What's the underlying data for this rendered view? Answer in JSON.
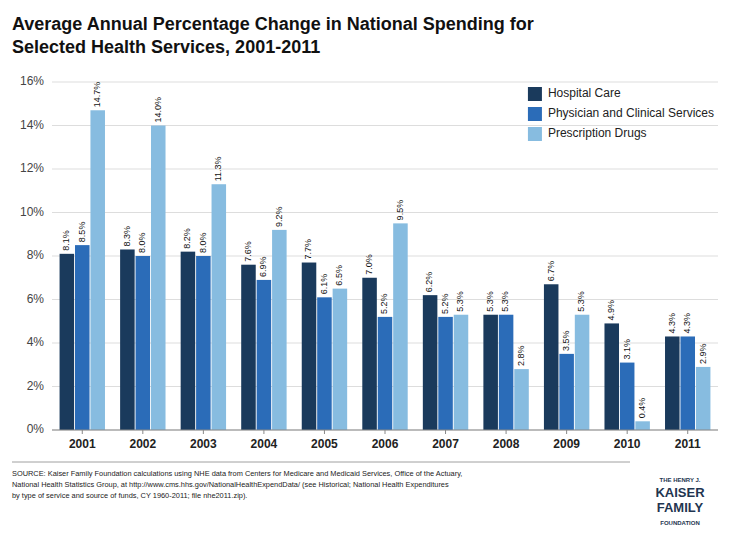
{
  "chart_data": {
    "type": "bar",
    "title": "Average Annual Percentage Change in National Spending for\nSelected Health Services, 2001-2011",
    "categories": [
      "2001",
      "2002",
      "2003",
      "2004",
      "2005",
      "2006",
      "2007",
      "2008",
      "2009",
      "2010",
      "2011"
    ],
    "series": [
      {
        "name": "Hospital Care",
        "color": "#1a3a5c",
        "values": [
          8.1,
          8.3,
          8.2,
          7.6,
          7.7,
          7.0,
          6.2,
          5.3,
          6.7,
          4.9,
          4.3
        ],
        "value_labels": [
          "8.1%",
          "8.3%",
          "8.2%",
          "7.6%",
          "7.7%",
          "7.0%",
          "6.2%",
          "5.3%",
          "6.7%",
          "4.9%",
          "4.3%"
        ]
      },
      {
        "name": "Physician and Clinical Services",
        "color": "#2b6cb8",
        "values": [
          8.5,
          8.0,
          8.0,
          6.9,
          6.1,
          5.2,
          5.2,
          5.3,
          3.5,
          3.1,
          4.3
        ],
        "value_labels": [
          "8.5%",
          "8.0%",
          "8.0%",
          "6.9%",
          "6.1%",
          "5.2%",
          "5.2%",
          "5.3%",
          "3.5%",
          "3.1%",
          "4.3%"
        ]
      },
      {
        "name": "Prescription Drugs",
        "color": "#87bce0",
        "values": [
          14.7,
          14.0,
          11.3,
          9.2,
          6.5,
          9.5,
          5.3,
          2.8,
          5.3,
          0.4,
          2.9
        ],
        "value_labels": [
          "14.7%",
          "14.0%",
          "11.3%",
          "9.2%",
          "6.5%",
          "9.5%",
          "5.3%",
          "2.8%",
          "5.3%",
          "0.4%",
          "2.9%"
        ]
      }
    ],
    "ylim": [
      0,
      16
    ],
    "yticks": [
      {
        "value": 0,
        "label": "0%"
      },
      {
        "value": 2,
        "label": "2%"
      },
      {
        "value": 4,
        "label": "4%"
      },
      {
        "value": 6,
        "label": "6%"
      },
      {
        "value": 8,
        "label": "8%"
      },
      {
        "value": 10,
        "label": "10%"
      },
      {
        "value": 12,
        "label": "12%"
      },
      {
        "value": 14,
        "label": "14%"
      },
      {
        "value": 16,
        "label": "16%"
      }
    ],
    "grid": true,
    "legend": "upper right",
    "data_labels": true,
    "source": "SOURCE: Kaiser Family Foundation calculations using NHE data from Centers for Medicare and Medicaid Services, Office of the Actuary,\nNational Health Statistics Group, at http://www.cms.hhs.gov/NationalHealthExpendData/ (see Historical; National Health Expenditures\nby type of service and source of funds, CY 1960-2011; file nhe2011.zip).",
    "logo": [
      "THE HENRY J.",
      "KAISER",
      "FAMILY",
      "FOUNDATION"
    ]
  }
}
